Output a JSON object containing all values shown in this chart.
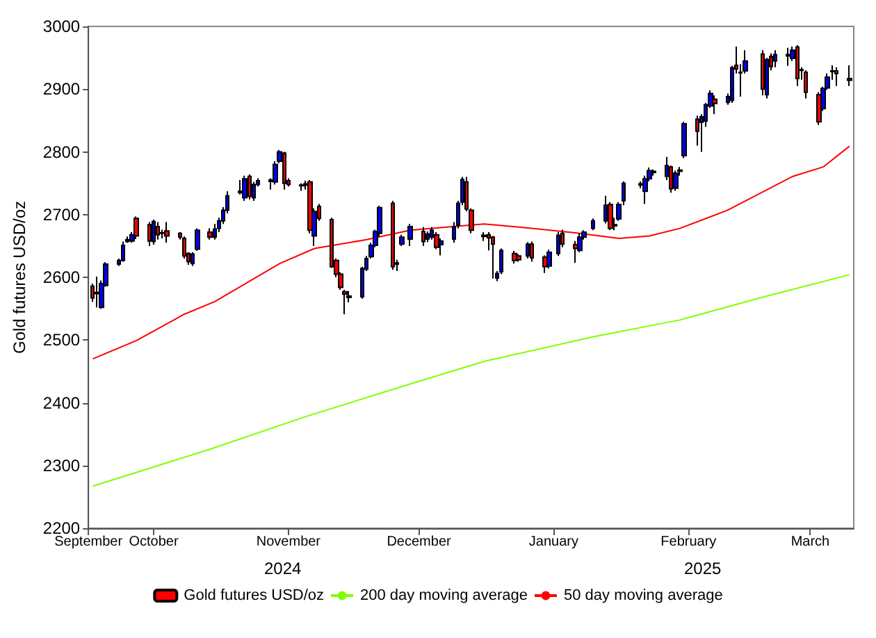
{
  "chart_data": {
    "type": "candlestick",
    "xlim": [
      "2024-09-16",
      "2025-03-11"
    ],
    "ylabel": "Gold futures USD/oz",
    "ylim": [
      2200,
      3000
    ],
    "yticks": [
      2200,
      2300,
      2400,
      2500,
      2600,
      2700,
      2800,
      2900,
      3000
    ],
    "grid": false,
    "legend": "bottom",
    "marker": "none",
    "line_style": "solid",
    "x": [
      "2024-09-17",
      "2024-09-18",
      "2024-09-19",
      "2024-09-20",
      "2024-09-23",
      "2024-09-24",
      "2024-09-25",
      "2024-09-26",
      "2024-09-27",
      "2024-09-30",
      "2024-10-01",
      "2024-10-02",
      "2024-10-03",
      "2024-10-04",
      "2024-10-07",
      "2024-10-08",
      "2024-10-09",
      "2024-10-10",
      "2024-10-11",
      "2024-10-14",
      "2024-10-15",
      "2024-10-16",
      "2024-10-17",
      "2024-10-18",
      "2024-10-21",
      "2024-10-22",
      "2024-10-23",
      "2024-10-24",
      "2024-10-25",
      "2024-10-28",
      "2024-10-29",
      "2024-10-30",
      "2024-10-31",
      "2024-11-01",
      "2024-11-04",
      "2024-11-05",
      "2024-11-06",
      "2024-11-07",
      "2024-11-08",
      "2024-11-11",
      "2024-11-12",
      "2024-11-13",
      "2024-11-14",
      "2024-11-15",
      "2024-11-18",
      "2024-11-19",
      "2024-11-20",
      "2024-11-21",
      "2024-11-22",
      "2024-11-25",
      "2024-11-26",
      "2024-11-27",
      "2024-11-29",
      "2024-12-02",
      "2024-12-03",
      "2024-12-04",
      "2024-12-05",
      "2024-12-06",
      "2024-12-09",
      "2024-12-10",
      "2024-12-11",
      "2024-12-12",
      "2024-12-13",
      "2024-12-16",
      "2024-12-17",
      "2024-12-18",
      "2024-12-19",
      "2024-12-20",
      "2024-12-23",
      "2024-12-24",
      "2024-12-26",
      "2024-12-27",
      "2024-12-30",
      "2024-12-31",
      "2025-01-02",
      "2025-01-03",
      "2025-01-06",
      "2025-01-07",
      "2025-01-08",
      "2025-01-10",
      "2025-01-13",
      "2025-01-14",
      "2025-01-15",
      "2025-01-16",
      "2025-01-17",
      "2025-01-21",
      "2025-01-22",
      "2025-01-23",
      "2025-01-24",
      "2025-01-27",
      "2025-01-28",
      "2025-01-29",
      "2025-01-30",
      "2025-01-31",
      "2025-02-03",
      "2025-02-04",
      "2025-02-05",
      "2025-02-06",
      "2025-02-07",
      "2025-02-10",
      "2025-02-11",
      "2025-02-12",
      "2025-02-13",
      "2025-02-14",
      "2025-02-18",
      "2025-02-19",
      "2025-02-20",
      "2025-02-21",
      "2025-02-24",
      "2025-02-25",
      "2025-02-26",
      "2025-02-27",
      "2025-02-28",
      "2025-03-03",
      "2025-03-04",
      "2025-03-05",
      "2025-03-06",
      "2025-03-07",
      "2025-03-10"
    ],
    "xticks": [
      {
        "value": "2024-09-16",
        "label": "September"
      },
      {
        "value": "2024-10-01",
        "label": "October"
      },
      {
        "value": "2024-11-01",
        "label": "November"
      },
      {
        "value": "2024-12-01",
        "label": "December"
      },
      {
        "value": "2025-01-01",
        "label": "January"
      },
      {
        "value": "2025-02-01",
        "label": "February"
      },
      {
        "value": "2025-03-01",
        "label": "March"
      }
    ],
    "annotations": [
      "2024",
      "2025"
    ],
    "series": [
      {
        "name": "Gold futures USD/oz",
        "type": "candlestick",
        "ohlc": [
          [
            2586,
            2590,
            2561,
            2567
          ],
          [
            2574,
            2601,
            2552,
            2576
          ],
          [
            2552,
            2595,
            2550,
            2590
          ],
          [
            2587,
            2624,
            2585,
            2621
          ],
          [
            2621,
            2630,
            2618,
            2627
          ],
          [
            2627,
            2657,
            2625,
            2651
          ],
          [
            2657,
            2665,
            2655,
            2660
          ],
          [
            2658,
            2672,
            2655,
            2668
          ],
          [
            2694,
            2697,
            2661,
            2666
          ],
          [
            2684,
            2688,
            2650,
            2658
          ],
          [
            2657,
            2692,
            2652,
            2689
          ],
          [
            2681,
            2688,
            2660,
            2668
          ],
          [
            2671,
            2676,
            2662,
            2670
          ],
          [
            2674,
            2688,
            2655,
            2666
          ],
          [
            2670,
            2672,
            2660,
            2664
          ],
          [
            2662,
            2665,
            2630,
            2634
          ],
          [
            2638,
            2640,
            2620,
            2625
          ],
          [
            2622,
            2640,
            2618,
            2637
          ],
          [
            2645,
            2678,
            2642,
            2675
          ],
          [
            2672,
            2678,
            2660,
            2664
          ],
          [
            2664,
            2685,
            2660,
            2677
          ],
          [
            2678,
            2695,
            2672,
            2690
          ],
          [
            2690,
            2712,
            2685,
            2707
          ],
          [
            2707,
            2737,
            2702,
            2730
          ],
          [
            2735,
            2755,
            2732,
            2737
          ],
          [
            2727,
            2762,
            2722,
            2757
          ],
          [
            2761,
            2764,
            2724,
            2729
          ],
          [
            2727,
            2752,
            2722,
            2748
          ],
          [
            2748,
            2758,
            2745,
            2754
          ],
          [
            2753,
            2758,
            2740,
            2755
          ],
          [
            2752,
            2785,
            2748,
            2780
          ],
          [
            2785,
            2803,
            2782,
            2800
          ],
          [
            2798,
            2800,
            2740,
            2750
          ],
          [
            2754,
            2758,
            2745,
            2748
          ],
          [
            2747,
            2750,
            2738,
            2746
          ],
          [
            2747,
            2754,
            2740,
            2749
          ],
          [
            2752,
            2755,
            2670,
            2675
          ],
          [
            2666,
            2710,
            2650,
            2705
          ],
          [
            2713,
            2717,
            2690,
            2694
          ],
          [
            2692,
            2695,
            2615,
            2617
          ],
          [
            2627,
            2630,
            2600,
            2605
          ],
          [
            2605,
            2608,
            2580,
            2584
          ],
          [
            2577,
            2580,
            2541,
            2573
          ],
          [
            2568,
            2578,
            2560,
            2570
          ],
          [
            2569,
            2617,
            2566,
            2614
          ],
          [
            2613,
            2634,
            2610,
            2630
          ],
          [
            2633,
            2655,
            2630,
            2651
          ],
          [
            2651,
            2676,
            2648,
            2673
          ],
          [
            2670,
            2714,
            2665,
            2711
          ],
          [
            2718,
            2722,
            2612,
            2617
          ],
          [
            2621,
            2628,
            2610,
            2623
          ],
          [
            2653,
            2668,
            2650,
            2664
          ],
          [
            2661,
            2685,
            2650,
            2681
          ],
          [
            2673,
            2680,
            2650,
            2657
          ],
          [
            2661,
            2673,
            2656,
            2669
          ],
          [
            2664,
            2680,
            2660,
            2675
          ],
          [
            2668,
            2672,
            2645,
            2648
          ],
          [
            2652,
            2662,
            2635,
            2658
          ],
          [
            2661,
            2688,
            2655,
            2681
          ],
          [
            2683,
            2722,
            2678,
            2718
          ],
          [
            2720,
            2760,
            2715,
            2756
          ],
          [
            2752,
            2760,
            2705,
            2709
          ],
          [
            2707,
            2710,
            2670,
            2675
          ],
          [
            2665,
            2672,
            2658,
            2667
          ],
          [
            2668,
            2672,
            2643,
            2663
          ],
          [
            2664,
            2666,
            2598,
            2653
          ],
          [
            2599,
            2610,
            2594,
            2606
          ],
          [
            2609,
            2646,
            2605,
            2643
          ],
          [
            2638,
            2642,
            2622,
            2627
          ],
          [
            2634,
            2637,
            2625,
            2628
          ],
          [
            2634,
            2656,
            2630,
            2653
          ],
          [
            2653,
            2657,
            2625,
            2631
          ],
          [
            2632,
            2635,
            2607,
            2617
          ],
          [
            2618,
            2644,
            2614,
            2640
          ],
          [
            2638,
            2672,
            2634,
            2667
          ],
          [
            2670,
            2676,
            2648,
            2653
          ],
          [
            2652,
            2658,
            2623,
            2646
          ],
          [
            2643,
            2670,
            2640,
            2664
          ],
          [
            2664,
            2675,
            2660,
            2672
          ],
          [
            2678,
            2694,
            2675,
            2690
          ],
          [
            2690,
            2730,
            2686,
            2715
          ],
          [
            2716,
            2720,
            2675,
            2678
          ],
          [
            2682,
            2695,
            2675,
            2684
          ],
          [
            2693,
            2720,
            2690,
            2716
          ],
          [
            2722,
            2753,
            2715,
            2750
          ],
          [
            2747,
            2753,
            2742,
            2749
          ],
          [
            2737,
            2762,
            2717,
            2757
          ],
          [
            2757,
            2775,
            2753,
            2770
          ],
          [
            2767,
            2772,
            2762,
            2769
          ],
          [
            2761,
            2792,
            2755,
            2778
          ],
          [
            2776,
            2778,
            2735,
            2741
          ],
          [
            2742,
            2770,
            2738,
            2766
          ],
          [
            2769,
            2776,
            2762,
            2771
          ],
          [
            2794,
            2848,
            2790,
            2845
          ],
          [
            2852,
            2858,
            2810,
            2833
          ],
          [
            2847,
            2860,
            2800,
            2856
          ],
          [
            2849,
            2878,
            2840,
            2875
          ],
          [
            2873,
            2898,
            2870,
            2893
          ],
          [
            2884,
            2890,
            2860,
            2877
          ],
          [
            2879,
            2893,
            2875,
            2888
          ],
          [
            2882,
            2937,
            2878,
            2934
          ],
          [
            2938,
            2968,
            2925,
            2932
          ],
          [
            2927,
            2940,
            2888,
            2926
          ],
          [
            2929,
            2962,
            2925,
            2945
          ],
          [
            2956,
            2962,
            2890,
            2900
          ],
          [
            2891,
            2950,
            2885,
            2947
          ],
          [
            2952,
            2957,
            2930,
            2936
          ],
          [
            2945,
            2962,
            2935,
            2955
          ],
          [
            2953,
            2966,
            2937,
            2955
          ],
          [
            2949,
            2968,
            2945,
            2962
          ],
          [
            2967,
            2970,
            2905,
            2917
          ],
          [
            2930,
            2935,
            2915,
            2931
          ],
          [
            2927,
            2930,
            2885,
            2895
          ],
          [
            2891,
            2895,
            2843,
            2848
          ],
          [
            2869,
            2904,
            2865,
            2901
          ],
          [
            2902,
            2925,
            2899,
            2919
          ],
          [
            2928,
            2938,
            2915,
            2929
          ],
          [
            2929,
            2935,
            2905,
            2925
          ],
          [
            2917,
            2938,
            2905,
            2914
          ]
        ],
        "colors": [
          "#ff0000",
          "#0000ff",
          "#0000ff",
          "#0000ff",
          "#0000ff",
          "#0000ff",
          "#0000ff",
          "#0000ff",
          "#ff0000",
          "#ff0000",
          "#0000ff",
          "#ff0000",
          "#ff0000",
          "#ff0000",
          "#ff0000",
          "#ff0000",
          "#ff0000",
          "#0000ff",
          "#0000ff",
          "#ff0000",
          "#0000ff",
          "#0000ff",
          "#0000ff",
          "#0000ff",
          "#0000ff",
          "#0000ff",
          "#ff0000",
          "#0000ff",
          "#0000ff",
          "#0000ff",
          "#0000ff",
          "#0000ff",
          "#ff0000",
          "#ff0000",
          "#ff0000",
          "#0000ff",
          "#ff0000",
          "#0000ff",
          "#ff0000",
          "#ff0000",
          "#ff0000",
          "#ff0000",
          "#ff0000",
          "#0000ff",
          "#0000ff",
          "#0000ff",
          "#0000ff",
          "#0000ff",
          "#0000ff",
          "#ff0000",
          "#0000ff",
          "#0000ff",
          "#0000ff",
          "#ff0000",
          "#0000ff",
          "#0000ff",
          "#ff0000",
          "#0000ff",
          "#0000ff",
          "#0000ff",
          "#0000ff",
          "#ff0000",
          "#ff0000",
          "#0000ff",
          "#ff0000",
          "#ff0000",
          "#0000ff",
          "#0000ff",
          "#ff0000",
          "#ff0000",
          "#0000ff",
          "#ff0000",
          "#ff0000",
          "#0000ff",
          "#0000ff",
          "#ff0000",
          "#ff0000",
          "#0000ff",
          "#0000ff",
          "#0000ff",
          "#0000ff",
          "#ff0000",
          "#0000ff",
          "#0000ff",
          "#0000ff",
          "#0000ff",
          "#0000ff",
          "#0000ff",
          "#0000ff",
          "#0000ff",
          "#ff0000",
          "#0000ff",
          "#0000ff",
          "#0000ff",
          "#ff0000",
          "#0000ff",
          "#0000ff",
          "#0000ff",
          "#ff0000",
          "#0000ff",
          "#0000ff",
          "#ff0000",
          "#ff0000",
          "#0000ff",
          "#ff0000",
          "#0000ff",
          "#ff0000",
          "#0000ff",
          "#0000ff",
          "#0000ff",
          "#ff0000",
          "#0000ff",
          "#ff0000",
          "#ff0000",
          "#0000ff",
          "#0000ff",
          "#0000ff",
          "#ff0000",
          "#ff0000"
        ]
      },
      {
        "name": "200 day moving average",
        "type": "line",
        "color": "#80ff00",
        "x": [
          "2024-09-17",
          "2024-10-14",
          "2024-11-05",
          "2024-11-29",
          "2024-12-16",
          "2025-01-10",
          "2025-01-30",
          "2025-02-19",
          "2025-03-10"
        ],
        "values": [
          2267,
          2326,
          2378,
          2430,
          2466,
          2505,
          2532,
          2570,
          2604
        ]
      },
      {
        "name": "50 day moving average",
        "type": "line",
        "color": "#ff0000",
        "x": [
          "2024-09-17",
          "2024-09-27",
          "2024-10-08",
          "2024-10-15",
          "2024-10-30",
          "2024-11-07",
          "2024-11-19",
          "2024-11-29",
          "2024-12-16",
          "2024-12-24",
          "2025-01-06",
          "2025-01-16",
          "2025-01-23",
          "2025-01-30",
          "2025-02-10",
          "2025-02-25",
          "2025-03-04",
          "2025-03-10"
        ],
        "values": [
          2470,
          2499,
          2541,
          2561,
          2622,
          2646,
          2660,
          2675,
          2685,
          2680,
          2671,
          2662,
          2666,
          2678,
          2707,
          2761,
          2776,
          2809
        ]
      }
    ]
  }
}
